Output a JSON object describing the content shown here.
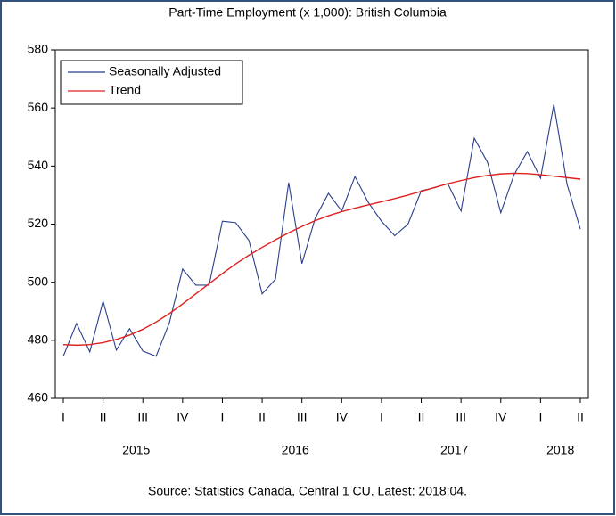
{
  "chart_data": {
    "type": "line",
    "title": "Part-Time Employment (x 1,000): British Columbia",
    "source": "Source: Statistics Canada, Central 1 CU. Latest: 2018:04.",
    "categories": [
      "I",
      null,
      null,
      "II",
      null,
      null,
      "III",
      null,
      null,
      "IV",
      null,
      null,
      "I",
      null,
      null,
      "II",
      null,
      null,
      "III",
      null,
      null,
      "IV",
      null,
      null,
      "I",
      null,
      null,
      "II",
      null,
      null,
      "III",
      null,
      null,
      "IV",
      null,
      null,
      "I",
      null,
      null,
      "II"
    ],
    "years": [
      "2015",
      "2016",
      "2017",
      "2018"
    ],
    "series": [
      {
        "name": "Seasonally Adjusted",
        "color": "#2b3f8c",
        "values": [
          474.5,
          485.8,
          476,
          493.5,
          476.6,
          484,
          476.3,
          474.5,
          486,
          504.5,
          499,
          499,
          521,
          520.5,
          514.4,
          496,
          501,
          534.3,
          506.4,
          522,
          530.6,
          524.5,
          536.4,
          527.5,
          521,
          516,
          520,
          531.5,
          532.5,
          534,
          524.5,
          549.6,
          541.3,
          523.9,
          537,
          545,
          535.8,
          561.3,
          533.7,
          518.3
        ]
      },
      {
        "name": "Trend",
        "color": "#e02020",
        "values": [
          478.5,
          478.3,
          478.5,
          479.2,
          480.3,
          481.8,
          483.8,
          486.3,
          489.2,
          492.5,
          496,
          499.5,
          503,
          506.3,
          509.3,
          512,
          514.6,
          517,
          519.2,
          521.2,
          522.9,
          524.3,
          525.5,
          526.6,
          527.7,
          528.8,
          530,
          531.3,
          532.6,
          533.9,
          535,
          536,
          536.8,
          537.3,
          537.5,
          537.4,
          537,
          536.5,
          536,
          535.5
        ]
      }
    ],
    "ylim": [
      460,
      580
    ],
    "yticks": [
      460,
      480,
      500,
      520,
      540,
      560,
      580
    ],
    "grid": false,
    "legend": "upper left"
  }
}
